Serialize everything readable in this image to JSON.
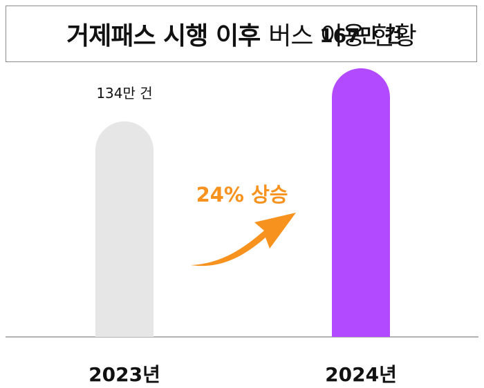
{
  "title": {
    "bold": "거제패스 시행 이후",
    "normal": "버스 이용 현황"
  },
  "annotation": {
    "text": "24% 상승"
  },
  "colors": {
    "bar_2023": "#e6e6e6",
    "bar_2024": "#b24bff",
    "arrow": "#f7921e",
    "axis": "#9a9a9a"
  },
  "chart_data": {
    "type": "bar",
    "title": "거제패스 시행 이후 버스 이용 현황",
    "categories": [
      "2023년",
      "2024년"
    ],
    "values": [
      134,
      167
    ],
    "value_labels": [
      "134만 건",
      "167만 건"
    ],
    "unit": "만 건",
    "ylim": [
      0,
      200
    ],
    "grid": false,
    "legend": "none",
    "annotations": [
      "24% 상승"
    ]
  }
}
